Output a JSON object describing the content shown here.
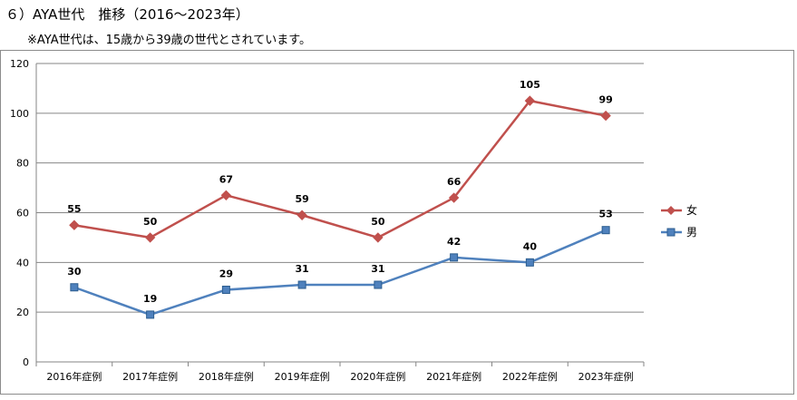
{
  "heading": "６）AYA世代　推移（2016～2023年）",
  "note": "※AYA世代は、15歳から39歳の世代とされています。",
  "chart_data": {
    "type": "line",
    "categories": [
      "2016年症例",
      "2017年症例",
      "2018年症例",
      "2019年症例",
      "2020年症例",
      "2021年症例",
      "2022年症例",
      "2023年症例"
    ],
    "series": [
      {
        "name": "女",
        "values": [
          55,
          50,
          67,
          59,
          50,
          66,
          105,
          99
        ],
        "color": "#c0504d",
        "marker": "diamond"
      },
      {
        "name": "男",
        "values": [
          30,
          19,
          29,
          31,
          31,
          42,
          40,
          53
        ],
        "color": "#4f81bd",
        "marker": "square"
      }
    ],
    "ylim": [
      0,
      120
    ],
    "yticks": [
      0,
      20,
      40,
      60,
      80,
      100,
      120
    ],
    "grid": true,
    "legend": "right"
  }
}
